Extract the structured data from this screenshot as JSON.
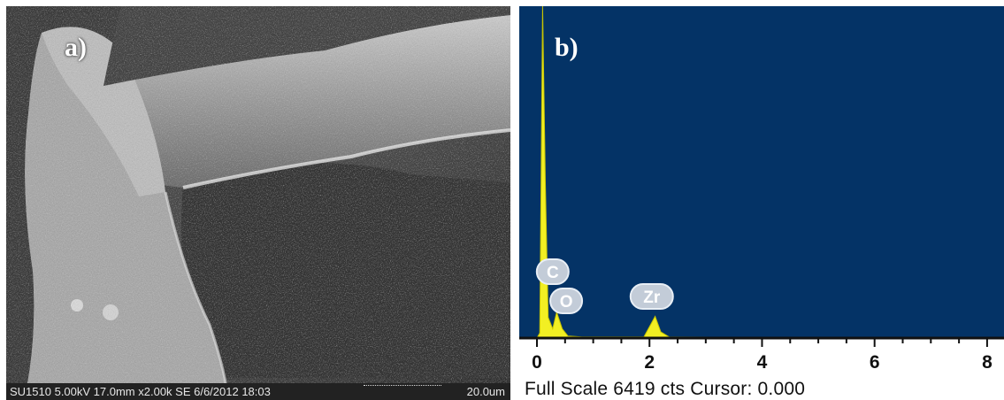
{
  "figure": {
    "panel_a": {
      "label": "a)",
      "sem_params": "SU1510 5.00kV 17.0mm x2.00k SE  6/6/2012 18:03",
      "scale_bar": "20.0um"
    },
    "panel_b": {
      "label": "b)",
      "footer": "Full Scale 6419 cts Cursor: 0.000",
      "background_color": "#043366",
      "peak_color": "#f2ef23",
      "peaks": [
        {
          "element": "C"
        },
        {
          "element": "O"
        },
        {
          "element": "Zr"
        }
      ],
      "x_ticks": [
        "0",
        "2",
        "4",
        "6",
        "8"
      ]
    }
  },
  "chart_data": {
    "type": "area",
    "title": "",
    "xlabel": "",
    "ylabel": "",
    "xlim": [
      0,
      8.3
    ],
    "x_ticks": [
      0,
      2,
      4,
      6,
      8
    ],
    "full_scale_cts": 6419,
    "series": [
      {
        "name": "",
        "points": [
          [
            0.0,
            0
          ],
          [
            0.05,
            100
          ],
          [
            0.1,
            6419
          ],
          [
            0.15,
            3000
          ],
          [
            0.2,
            400
          ],
          [
            0.28,
            180
          ],
          [
            0.35,
            500
          ],
          [
            0.45,
            180
          ],
          [
            0.55,
            40
          ],
          [
            0.8,
            20
          ],
          [
            1.9,
            20
          ],
          [
            2.04,
            300
          ],
          [
            2.1,
            420
          ],
          [
            2.2,
            120
          ],
          [
            2.35,
            20
          ],
          [
            8.3,
            0
          ]
        ]
      }
    ],
    "peak_labels": [
      {
        "element": "C",
        "x": 0.28
      },
      {
        "element": "O",
        "x": 0.52
      },
      {
        "element": "Zr",
        "x": 2.04
      }
    ]
  }
}
